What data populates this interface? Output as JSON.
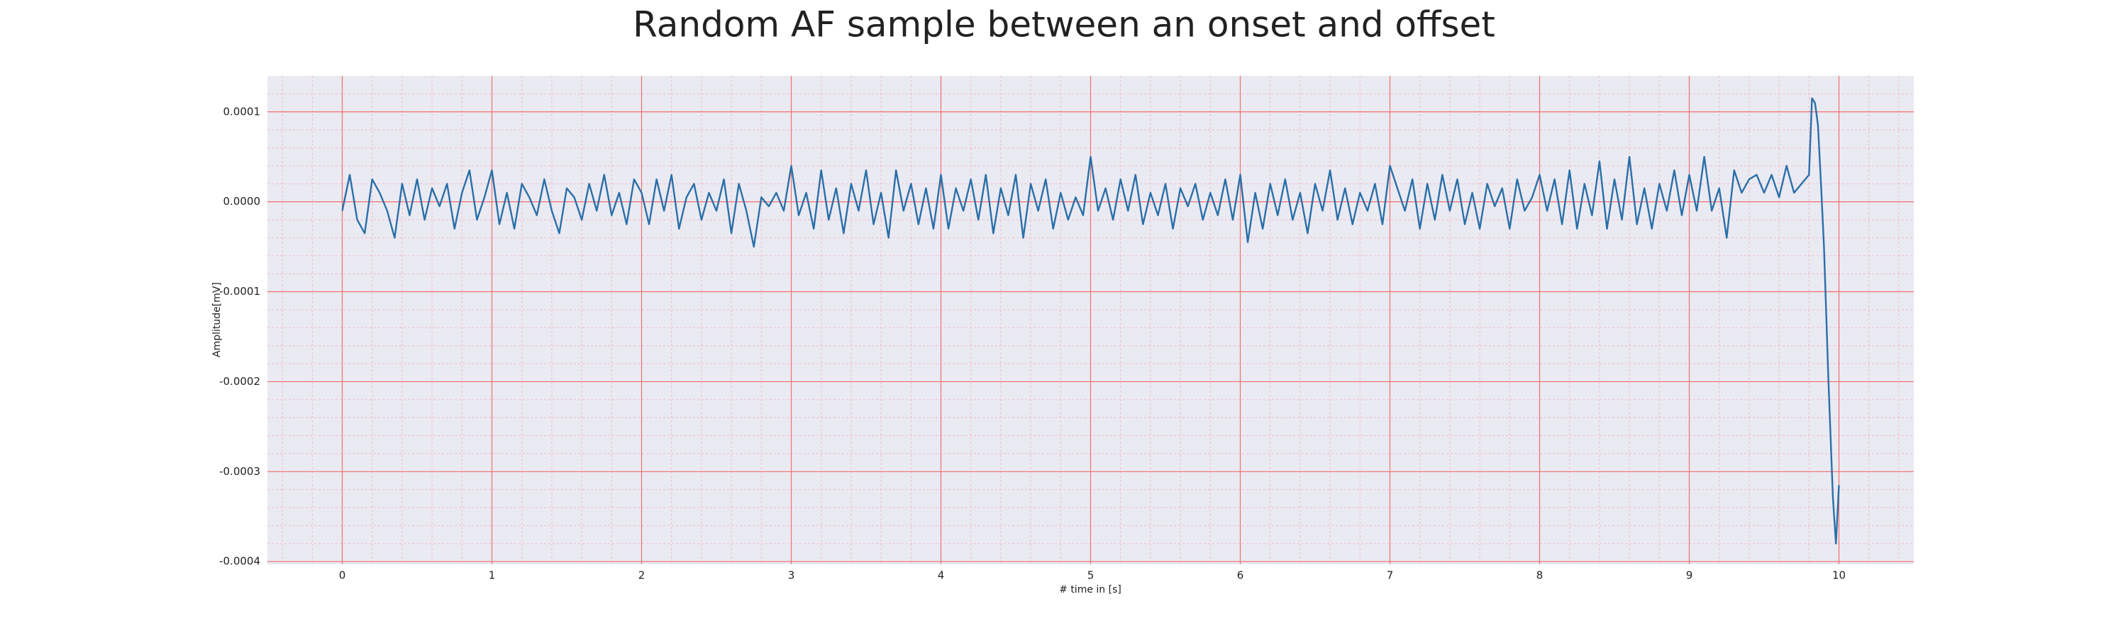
{
  "chart_data": {
    "type": "line",
    "title": "Random AF sample between an onset and offset",
    "xlabel": "# time in [s]",
    "ylabel": "Amplitude[mV]",
    "color": "#2a6fa8",
    "grid": true,
    "minor_grid": true,
    "xlim": [
      -0.5,
      10.5
    ],
    "ylim": [
      -0.000403,
      0.00014
    ],
    "xticks": [
      0,
      1,
      2,
      3,
      4,
      5,
      6,
      7,
      8,
      9,
      10
    ],
    "yticks": [
      {
        "value": -0.0004,
        "label": "-0.0004"
      },
      {
        "value": -0.0003,
        "label": "-0.0003"
      },
      {
        "value": -0.0002,
        "label": "-0.0002"
      },
      {
        "value": -0.0001,
        "label": "-0.0001"
      },
      {
        "value": 0,
        "label": "0.0000"
      },
      {
        "value": 0.0001,
        "label": "0.0001"
      }
    ],
    "x": [
      0,
      0.05,
      0.1,
      0.15,
      0.2,
      0.25,
      0.3,
      0.35,
      0.4,
      0.45,
      0.5,
      0.55,
      0.6,
      0.65,
      0.7,
      0.75,
      0.8,
      0.85,
      0.9,
      0.95,
      1,
      1.05,
      1.1,
      1.15,
      1.2,
      1.25,
      1.3,
      1.35,
      1.4,
      1.45,
      1.5,
      1.55,
      1.6,
      1.65,
      1.7,
      1.75,
      1.8,
      1.85,
      1.9,
      1.95,
      2,
      2.05,
      2.1,
      2.15,
      2.2,
      2.25,
      2.3,
      2.35,
      2.4,
      2.45,
      2.5,
      2.55,
      2.6,
      2.65,
      2.7,
      2.75,
      2.8,
      2.85,
      2.9,
      2.95,
      3,
      3.05,
      3.1,
      3.15,
      3.2,
      3.25,
      3.3,
      3.35,
      3.4,
      3.45,
      3.5,
      3.55,
      3.6,
      3.65,
      3.7,
      3.75,
      3.8,
      3.85,
      3.9,
      3.95,
      4,
      4.05,
      4.1,
      4.15,
      4.2,
      4.25,
      4.3,
      4.35,
      4.4,
      4.45,
      4.5,
      4.55,
      4.6,
      4.65,
      4.7,
      4.75,
      4.8,
      4.85,
      4.9,
      4.95,
      5,
      5.05,
      5.1,
      5.15,
      5.2,
      5.25,
      5.3,
      5.35,
      5.4,
      5.45,
      5.5,
      5.55,
      5.6,
      5.65,
      5.7,
      5.75,
      5.8,
      5.85,
      5.9,
      5.95,
      6,
      6.05,
      6.1,
      6.15,
      6.2,
      6.25,
      6.3,
      6.35,
      6.4,
      6.45,
      6.5,
      6.55,
      6.6,
      6.65,
      6.7,
      6.75,
      6.8,
      6.85,
      6.9,
      6.95,
      7,
      7.05,
      7.1,
      7.15,
      7.2,
      7.25,
      7.3,
      7.35,
      7.4,
      7.45,
      7.5,
      7.55,
      7.6,
      7.65,
      7.7,
      7.75,
      7.8,
      7.85,
      7.9,
      7.95,
      8,
      8.05,
      8.1,
      8.15,
      8.2,
      8.25,
      8.3,
      8.35,
      8.4,
      8.45,
      8.5,
      8.55,
      8.6,
      8.65,
      8.7,
      8.75,
      8.8,
      8.85,
      8.9,
      8.95,
      9,
      9.05,
      9.1,
      9.15,
      9.2,
      9.25,
      9.3,
      9.35,
      9.4,
      9.45,
      9.5,
      9.55,
      9.6,
      9.65,
      9.7,
      9.75,
      9.8,
      9.82,
      9.84,
      9.86,
      9.88,
      9.9,
      9.93,
      9.96,
      9.98,
      10
    ],
    "values": [
      -1e-05,
      3e-05,
      -2e-05,
      -3.5e-05,
      2.5e-05,
      1e-05,
      -1e-05,
      -4e-05,
      2e-05,
      -1.5e-05,
      2.5e-05,
      -2e-05,
      1.5e-05,
      -5e-06,
      2e-05,
      -3e-05,
      1e-05,
      3.5e-05,
      -2e-05,
      5e-06,
      3.5e-05,
      -2.5e-05,
      1e-05,
      -3e-05,
      2e-05,
      5e-06,
      -1.5e-05,
      2.5e-05,
      -1e-05,
      -3.5e-05,
      1.5e-05,
      5e-06,
      -2e-05,
      2e-05,
      -1e-05,
      3e-05,
      -1.5e-05,
      1e-05,
      -2.5e-05,
      2.5e-05,
      1e-05,
      -2.5e-05,
      2.5e-05,
      -1e-05,
      3e-05,
      -3e-05,
      5e-06,
      2e-05,
      -2e-05,
      1e-05,
      -1e-05,
      2.5e-05,
      -3.5e-05,
      2e-05,
      -1e-05,
      -5e-05,
      5e-06,
      -5e-06,
      1e-05,
      -1e-05,
      4e-05,
      -1.5e-05,
      1e-05,
      -3e-05,
      3.5e-05,
      -2e-05,
      1.5e-05,
      -3.5e-05,
      2e-05,
      -1e-05,
      3.5e-05,
      -2.5e-05,
      1e-05,
      -4e-05,
      3.5e-05,
      -1e-05,
      2e-05,
      -2.5e-05,
      1.5e-05,
      -3e-05,
      3e-05,
      -3e-05,
      1.5e-05,
      -1e-05,
      2.5e-05,
      -2e-05,
      3e-05,
      -3.5e-05,
      1.5e-05,
      -1.5e-05,
      3e-05,
      -4e-05,
      2e-05,
      -1e-05,
      2.5e-05,
      -3e-05,
      1e-05,
      -2e-05,
      5e-06,
      -1.5e-05,
      5e-05,
      -1e-05,
      1.5e-05,
      -2e-05,
      2.5e-05,
      -1e-05,
      3e-05,
      -2.5e-05,
      1e-05,
      -1.5e-05,
      2e-05,
      -3e-05,
      1.5e-05,
      -5e-06,
      2e-05,
      -2e-05,
      1e-05,
      -1.5e-05,
      2.5e-05,
      -2e-05,
      3e-05,
      -4.5e-05,
      1e-05,
      -3e-05,
      2e-05,
      -1.5e-05,
      2.5e-05,
      -2e-05,
      1e-05,
      -3.5e-05,
      2e-05,
      -1e-05,
      3.5e-05,
      -2e-05,
      1.5e-05,
      -2.5e-05,
      1e-05,
      -1e-05,
      2e-05,
      -2.5e-05,
      4e-05,
      1.5e-05,
      -1e-05,
      2.5e-05,
      -3e-05,
      2e-05,
      -2e-05,
      3e-05,
      -1e-05,
      2.5e-05,
      -2.5e-05,
      1e-05,
      -3e-05,
      2e-05,
      -5e-06,
      1.5e-05,
      -3e-05,
      2.5e-05,
      -1e-05,
      5e-06,
      3e-05,
      -1e-05,
      2.5e-05,
      -2.5e-05,
      3.5e-05,
      -3e-05,
      2e-05,
      -1.5e-05,
      4.5e-05,
      -3e-05,
      2.5e-05,
      -2e-05,
      5e-05,
      -2.5e-05,
      1.5e-05,
      -3e-05,
      2e-05,
      -1e-05,
      3.5e-05,
      -1.5e-05,
      3e-05,
      -1e-05,
      5e-05,
      -1e-05,
      1.5e-05,
      -4e-05,
      3.5e-05,
      1e-05,
      2.5e-05,
      3e-05,
      1e-05,
      3e-05,
      5e-06,
      4e-05,
      1e-05,
      2e-05,
      3e-05,
      0.000115,
      0.00011,
      8.5e-05,
      2e-05,
      -5e-05,
      -0.0002,
      -0.00033,
      -0.00038,
      -0.000315
    ]
  }
}
